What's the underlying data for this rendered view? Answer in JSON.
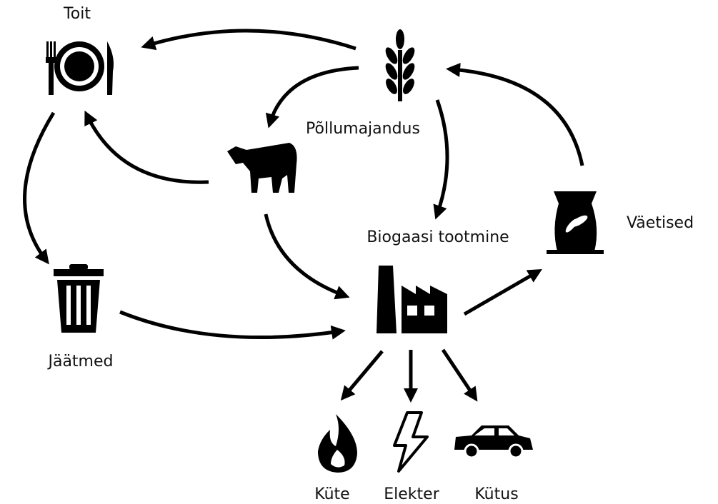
{
  "nodes": [
    {
      "label": "Toit"
    },
    {
      "label": "Põllumajandus"
    },
    {
      "label": "Biogaasi tootmine"
    },
    {
      "label": "Väetised"
    },
    {
      "label": "Jäätmed"
    },
    {
      "label": "Küte"
    },
    {
      "label": "Elekter"
    },
    {
      "label": "Kütus"
    }
  ]
}
